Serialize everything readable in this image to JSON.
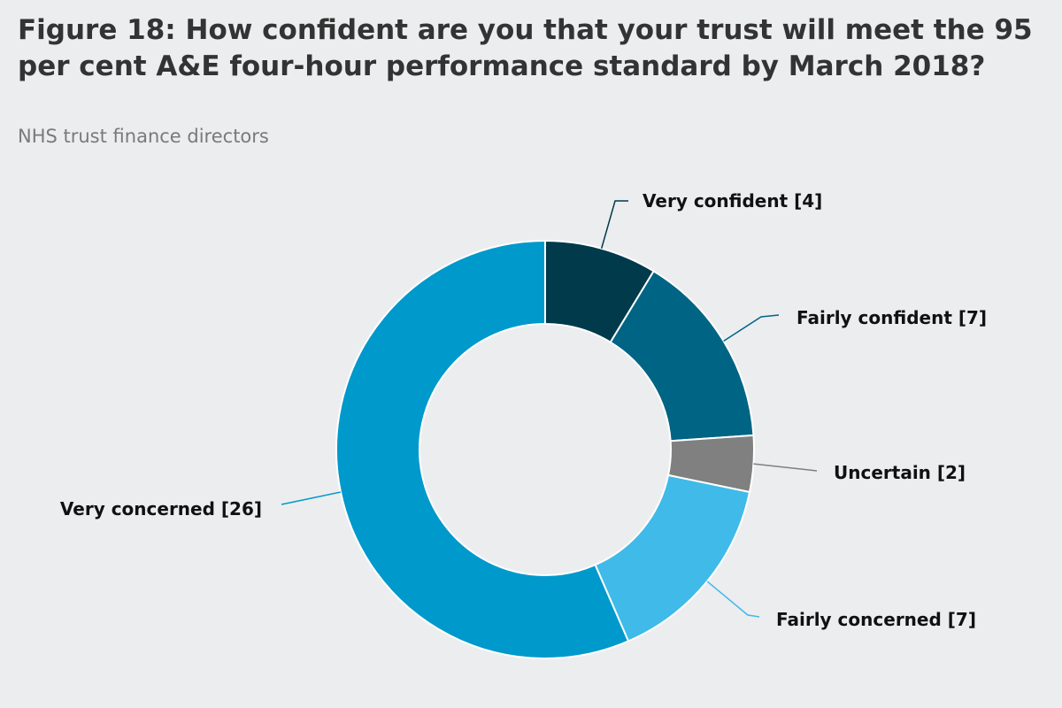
{
  "chart_data": {
    "type": "pie",
    "variant": "donut",
    "title": "Figure 18: How confident are you that your trust will meet the 95 per cent A&E four-hour performance standard by March 2018?",
    "subtitle": "NHS trust finance directors",
    "slices": [
      {
        "label": "Very confident [4]",
        "value": 4,
        "color": "#003a4b"
      },
      {
        "label": "Fairly confident [7]",
        "value": 7,
        "color": "#006484"
      },
      {
        "label": "Uncertain [2]",
        "value": 2,
        "color": "#808080"
      },
      {
        "label": "Fairly concerned [7]",
        "value": 7,
        "color": "#40bae8"
      },
      {
        "label": "Very concerned [26]",
        "value": 26,
        "color": "#0099cc"
      }
    ]
  }
}
